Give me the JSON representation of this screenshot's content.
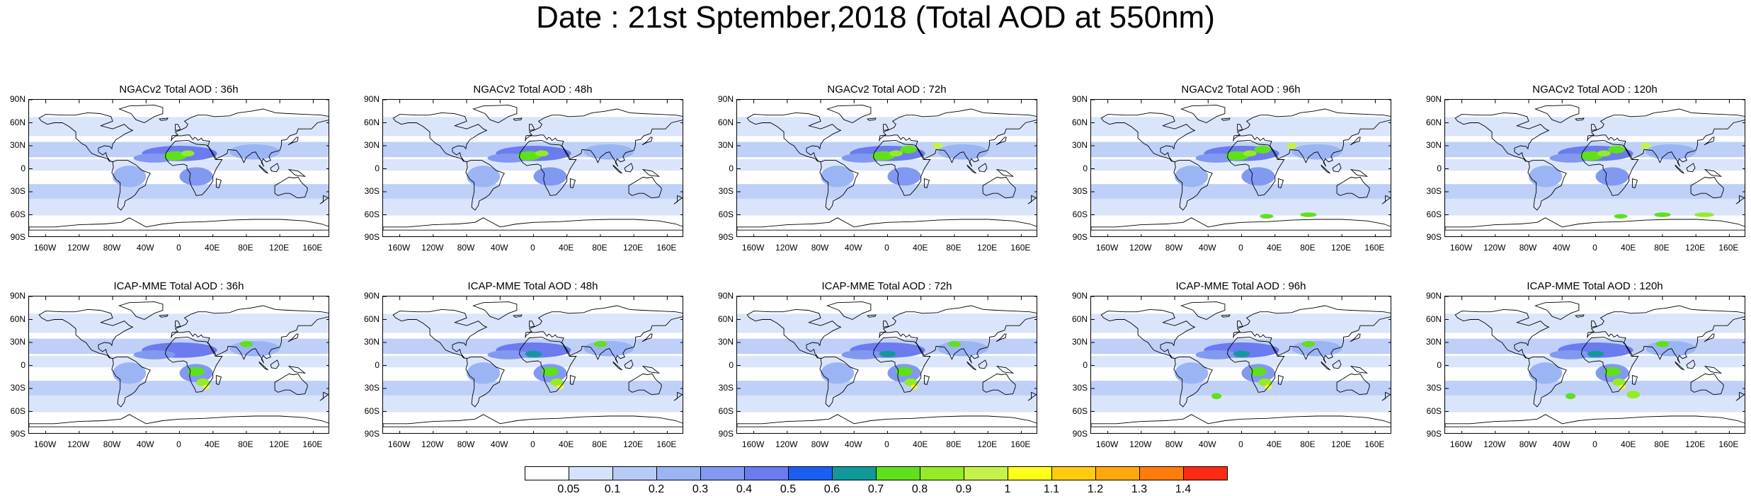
{
  "title": "Date : 21st Sptember,2018 (Total AOD at 550nm)",
  "panels": {
    "rows": [
      {
        "model": "NGACv2",
        "titles": [
          "NGACv2 Total AOD : 36h",
          "NGACv2 Total AOD : 48h",
          "NGACv2 Total AOD : 72h",
          "NGACv2 Total AOD : 96h",
          "NGACv2 Total AOD : 120h"
        ]
      },
      {
        "model": "ICAP-MME",
        "titles": [
          "ICAP-MME Total AOD : 36h",
          "ICAP-MME Total AOD : 48h",
          "ICAP-MME Total AOD : 72h",
          "ICAP-MME Total AOD : 96h",
          "ICAP-MME Total AOD : 120h"
        ]
      }
    ],
    "lat_ticks": [
      "90N",
      "60N",
      "30N",
      "0",
      "30S",
      "60S",
      "90S"
    ],
    "lon_ticks": [
      "160W",
      "120W",
      "80W",
      "40W",
      "0",
      "40E",
      "80E",
      "120E",
      "160E"
    ],
    "lat_values": [
      90,
      60,
      30,
      0,
      -30,
      -60,
      -90
    ],
    "lon_values": [
      -160,
      -120,
      -80,
      -40,
      0,
      40,
      80,
      120,
      160
    ],
    "map_extent": {
      "lon": [
        -180,
        180
      ],
      "lat": [
        -90,
        90
      ]
    }
  },
  "colorbar": {
    "labels": [
      "0.05",
      "0.1",
      "0.2",
      "0.3",
      "0.4",
      "0.5",
      "0.6",
      "0.7",
      "0.8",
      "0.9",
      "1",
      "1.1",
      "1.2",
      "1.3",
      "1.4"
    ],
    "colors": [
      "#ffffff",
      "#d6e2fb",
      "#b7cbf7",
      "#9bb5f4",
      "#8199f0",
      "#6a7cee",
      "#1a5ff0",
      "#119999",
      "#5fe01c",
      "#93ec25",
      "#c5f24a",
      "#ffff1a",
      "#ffcc11",
      "#ffa80e",
      "#ff7d0d",
      "#ff2a14"
    ]
  }
}
